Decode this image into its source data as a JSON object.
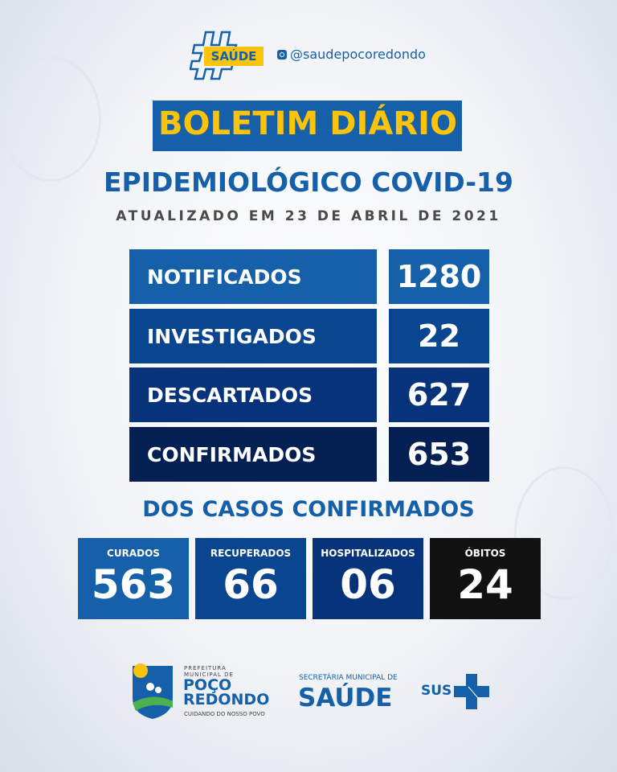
{
  "header": {
    "hashtag_label": "SAÚDE",
    "instagram_handle": "@saudepocoredondo"
  },
  "title": {
    "banner": "BOLETIM DIÁRIO",
    "subtitle": "EPIDEMIOLÓGICO COVID-19",
    "updated": "ATUALIZADO EM 23 DE ABRIL DE 2021"
  },
  "summary": [
    {
      "label": "NOTIFICADOS",
      "value": "1280",
      "color": "#1560a8"
    },
    {
      "label": "INVESTIGADOS",
      "value": "22",
      "color": "#0a4590"
    },
    {
      "label": "DESCARTADOS",
      "value": "627",
      "color": "#07337a"
    },
    {
      "label": "CONFIRMADOS",
      "value": "653",
      "color": "#041f52"
    }
  ],
  "confirmed_section": {
    "title": "DOS CASOS CONFIRMADOS",
    "items": [
      {
        "label": "CURADOS",
        "value": "563",
        "color": "#1560a8"
      },
      {
        "label": "RECUPERADOS",
        "value": "66",
        "color": "#0a4590"
      },
      {
        "label": "HOSPITALIZADOS",
        "value": "06",
        "color": "#07337a"
      },
      {
        "label": "ÓBITOS",
        "value": "24",
        "color": "#111111"
      }
    ]
  },
  "footer": {
    "prefeitura_line1": "PREFEITURA",
    "prefeitura_line2": "MUNICIPAL DE",
    "city_line1": "POÇO",
    "city_line2": "REDONDO",
    "slogan": "CUIDANDO DO NOSSO POVO",
    "secretaria": "SECRETÁRIA MUNICIPAL DE",
    "saude": "SAÚDE",
    "sus": "SUS"
  },
  "colors": {
    "brand_blue": "#1560a8",
    "yellow": "#fbc30c"
  }
}
